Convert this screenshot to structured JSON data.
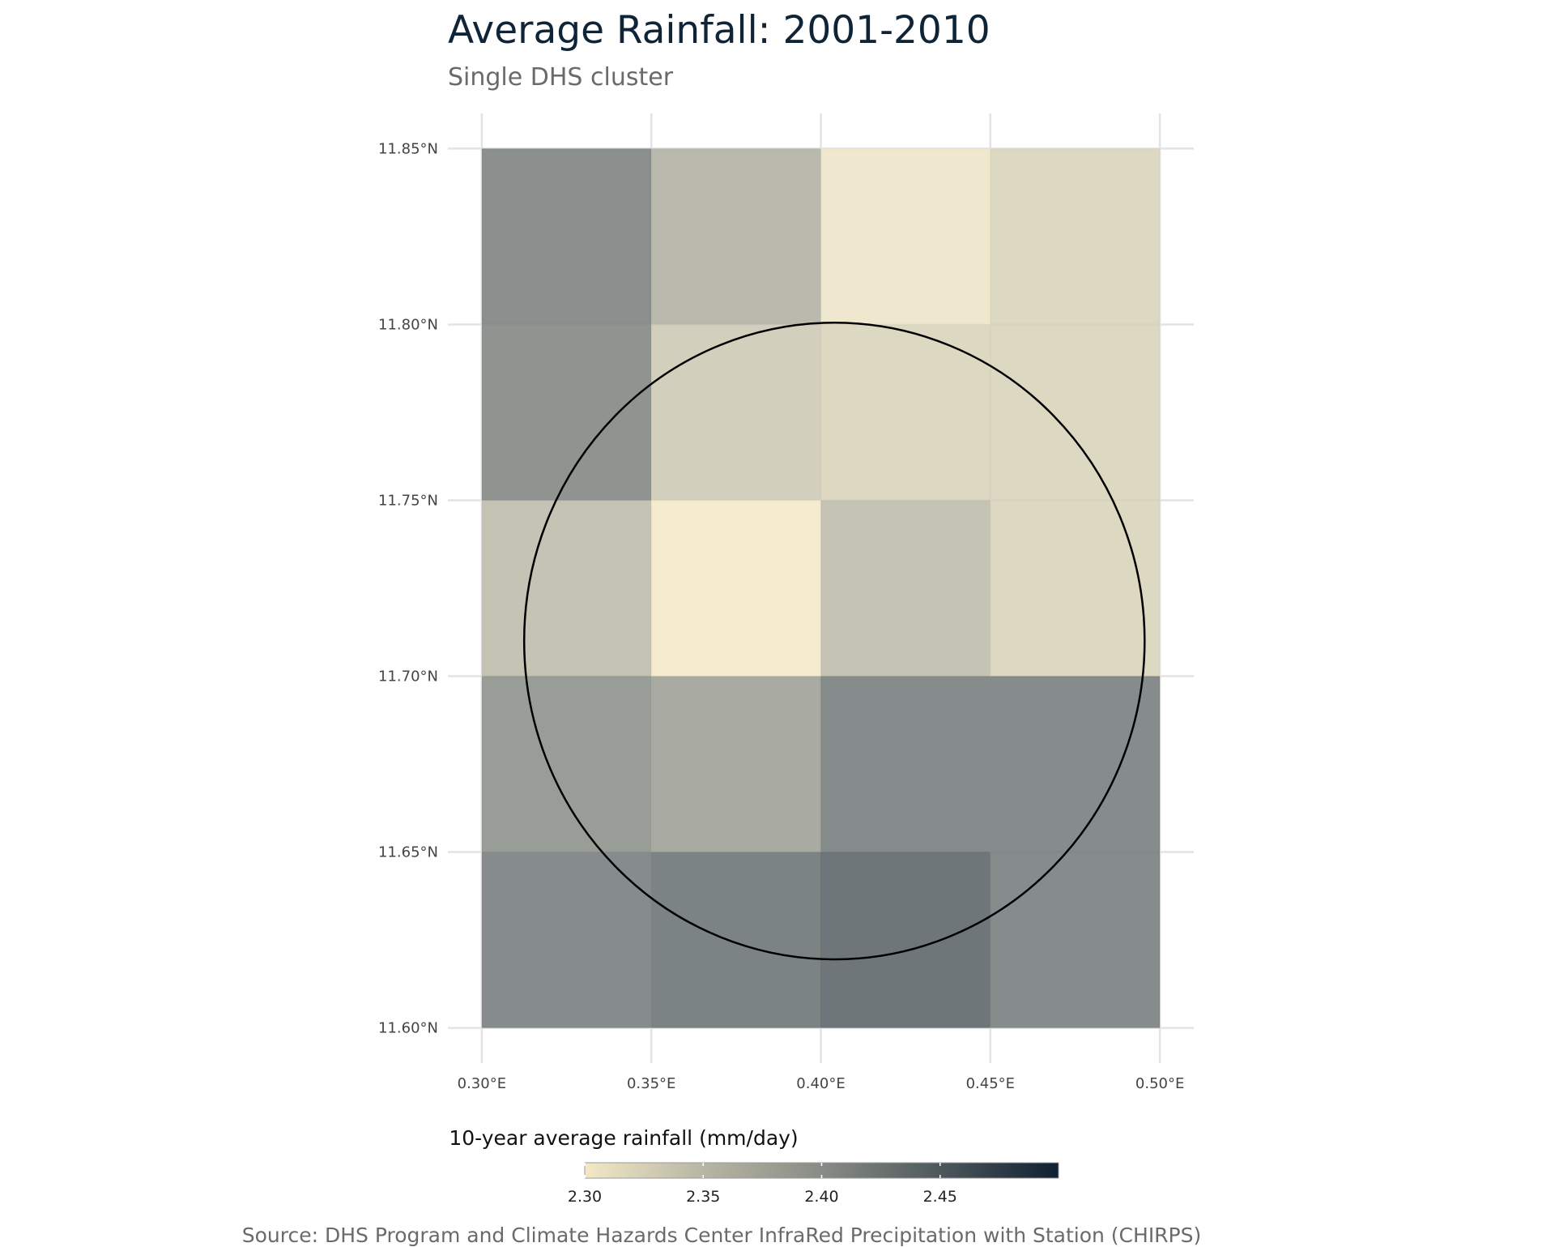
{
  "title": "Average Rainfall: 2001-2010",
  "subtitle": "Single DHS cluster",
  "caption": "Source: DHS Program and Climate Hazards Center InfraRed Precipitation with Station (CHIRPS)",
  "chart_data": {
    "type": "heatmap",
    "x_edges": [
      0.3,
      0.35,
      0.4,
      0.45,
      0.5
    ],
    "y_edges": [
      11.6,
      11.65,
      11.7,
      11.75,
      11.8,
      11.85
    ],
    "xlim": [
      0.29,
      0.51
    ],
    "ylim": [
      11.59,
      11.86
    ],
    "x_ticks": [
      0.3,
      0.35,
      0.4,
      0.45,
      0.5
    ],
    "x_tick_labels": [
      "0.30°E",
      "0.35°E",
      "0.40°E",
      "0.45°E",
      "0.50°E"
    ],
    "y_ticks": [
      11.6,
      11.65,
      11.7,
      11.75,
      11.8,
      11.85
    ],
    "y_tick_labels": [
      "11.60°N",
      "11.65°N",
      "11.70°N",
      "11.75°N",
      "11.80°N",
      "11.85°N"
    ],
    "grid": true,
    "cells_top_to_bottom": [
      [
        2.42,
        2.365,
        2.305,
        2.325
      ],
      [
        2.415,
        2.335,
        2.325,
        2.325
      ],
      [
        2.35,
        2.3,
        2.35,
        2.325
      ],
      [
        2.405,
        2.385,
        2.425,
        2.425
      ],
      [
        2.425,
        2.435,
        2.45,
        2.425
      ]
    ],
    "circle": {
      "center_lon": 0.404,
      "center_lat": 11.71,
      "radius_lon": 0.0915,
      "radius_lat": 0.0905
    },
    "legend": {
      "title": "10-year average rainfall (mm/day)",
      "position": "bottom",
      "range": [
        2.3,
        2.5
      ],
      "ticks": [
        2.3,
        2.35,
        2.4,
        2.45
      ],
      "tick_labels": [
        "2.30",
        "2.35",
        "2.40",
        "2.45"
      ],
      "colors": [
        "#f3e8c6",
        "#b7b6a4",
        "#888c85",
        "#4e585c",
        "#0f2032"
      ]
    }
  }
}
